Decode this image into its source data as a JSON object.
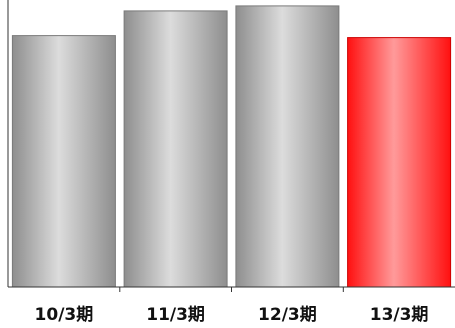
{
  "chart_data": {
    "type": "bar",
    "categories": [
      "10/3期",
      "11/3期",
      "12/3期",
      "13/3期"
    ],
    "values": [
      254,
      279,
      284,
      252
    ],
    "ylim": [
      0,
      290
    ],
    "highlight_index": 3,
    "colors": {
      "default_bar": "#b4b4b4",
      "highlight_bar": "#ff2020",
      "axis": "#333333"
    },
    "grid": false,
    "legend": "none"
  }
}
